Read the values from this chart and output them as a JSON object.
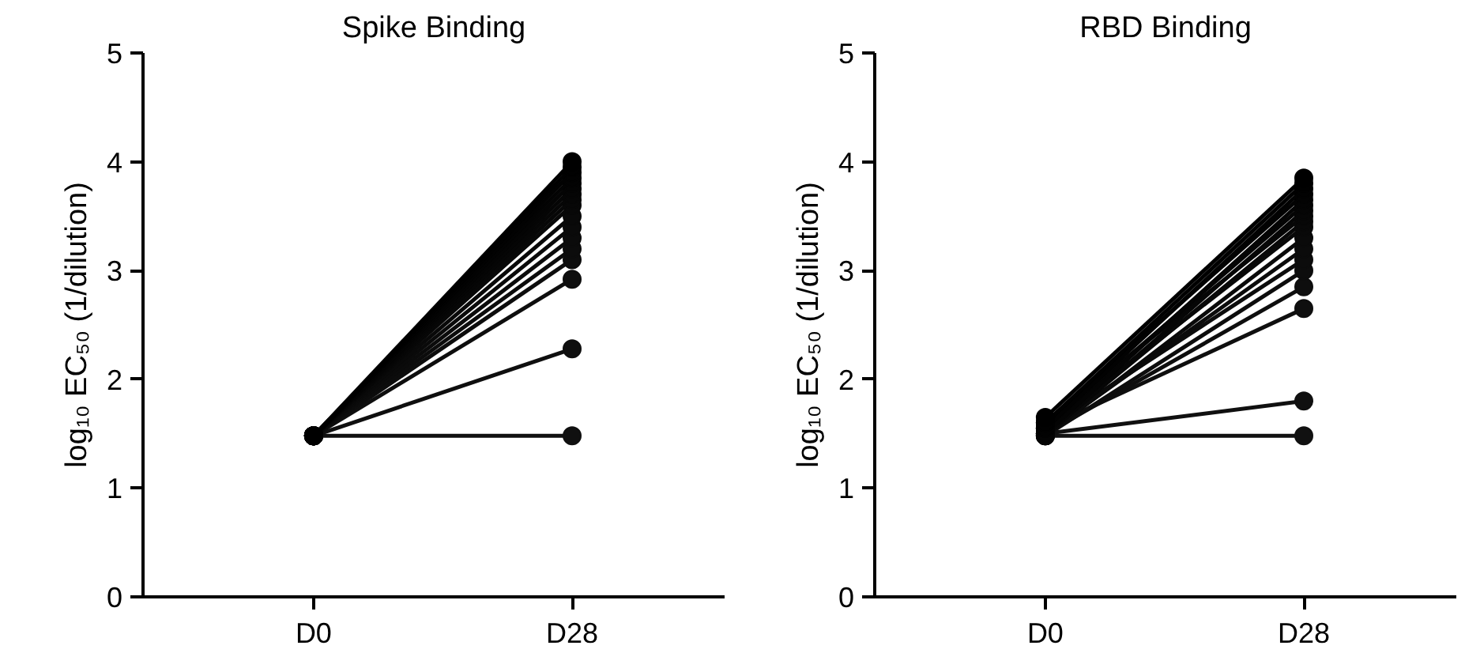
{
  "chart_data": [
    {
      "type": "line",
      "title": "Spike Binding",
      "ylabel": "log₁₀ EC₅₀ (1/dilution)",
      "categories": [
        "D0",
        "D28"
      ],
      "ylim": [
        0,
        5
      ],
      "yticks": [
        0,
        1,
        2,
        3,
        4,
        5
      ],
      "marker": "circle",
      "line_style": "solid",
      "series": [
        {
          "color": "#000000",
          "values": [
            1.48,
            4.0
          ]
        },
        {
          "color": "#010101",
          "values": [
            1.48,
            3.95
          ]
        },
        {
          "color": "#020202",
          "values": [
            1.48,
            3.9
          ]
        },
        {
          "color": "#030303",
          "values": [
            1.48,
            3.85
          ]
        },
        {
          "color": "#040404",
          "values": [
            1.48,
            3.8
          ]
        },
        {
          "color": "#050505",
          "values": [
            1.48,
            3.75
          ]
        },
        {
          "color": "#060606",
          "values": [
            1.48,
            3.7
          ]
        },
        {
          "color": "#070707",
          "values": [
            1.48,
            3.65
          ]
        },
        {
          "color": "#080808",
          "values": [
            1.48,
            3.6
          ]
        },
        {
          "color": "#090909",
          "values": [
            1.48,
            3.5
          ]
        },
        {
          "color": "#0a0a0a",
          "values": [
            1.48,
            3.4
          ]
        },
        {
          "color": "#0b0b0b",
          "values": [
            1.48,
            3.3
          ]
        },
        {
          "color": "#0c0c0c",
          "values": [
            1.48,
            3.2
          ]
        },
        {
          "color": "#0d0d0d",
          "values": [
            1.48,
            3.1
          ]
        },
        {
          "color": "#0e0e0e",
          "values": [
            1.48,
            2.92
          ]
        },
        {
          "color": "#0f0f0f",
          "values": [
            1.48,
            2.28
          ]
        },
        {
          "color": "#101010",
          "values": [
            1.48,
            1.48
          ]
        }
      ]
    },
    {
      "type": "line",
      "title": "RBD Binding",
      "ylabel": "log₁₀ EC₅₀ (1/dilution)",
      "categories": [
        "D0",
        "D28"
      ],
      "ylim": [
        0,
        5
      ],
      "yticks": [
        0,
        1,
        2,
        3,
        4,
        5
      ],
      "marker": "circle",
      "line_style": "solid",
      "series": [
        {
          "color": "#000000",
          "values": [
            1.65,
            3.85
          ]
        },
        {
          "color": "#010101",
          "values": [
            1.6,
            3.8
          ]
        },
        {
          "color": "#020202",
          "values": [
            1.55,
            3.75
          ]
        },
        {
          "color": "#030303",
          "values": [
            1.6,
            3.7
          ]
        },
        {
          "color": "#040404",
          "values": [
            1.5,
            3.65
          ]
        },
        {
          "color": "#050505",
          "values": [
            1.55,
            3.6
          ]
        },
        {
          "color": "#060606",
          "values": [
            1.48,
            3.55
          ]
        },
        {
          "color": "#070707",
          "values": [
            1.6,
            3.5
          ]
        },
        {
          "color": "#080808",
          "values": [
            1.5,
            3.45
          ]
        },
        {
          "color": "#090909",
          "values": [
            1.55,
            3.4
          ]
        },
        {
          "color": "#0a0a0a",
          "values": [
            1.48,
            3.3
          ]
        },
        {
          "color": "#0b0b0b",
          "values": [
            1.5,
            3.2
          ]
        },
        {
          "color": "#0c0c0c",
          "values": [
            1.55,
            3.1
          ]
        },
        {
          "color": "#0d0d0d",
          "values": [
            1.48,
            3.0
          ]
        },
        {
          "color": "#0e0e0e",
          "values": [
            1.5,
            2.85
          ]
        },
        {
          "color": "#0f0f0f",
          "values": [
            1.55,
            2.65
          ]
        },
        {
          "color": "#101010",
          "values": [
            1.5,
            1.8
          ]
        },
        {
          "color": "#111111",
          "values": [
            1.48,
            1.48
          ]
        }
      ]
    }
  ]
}
